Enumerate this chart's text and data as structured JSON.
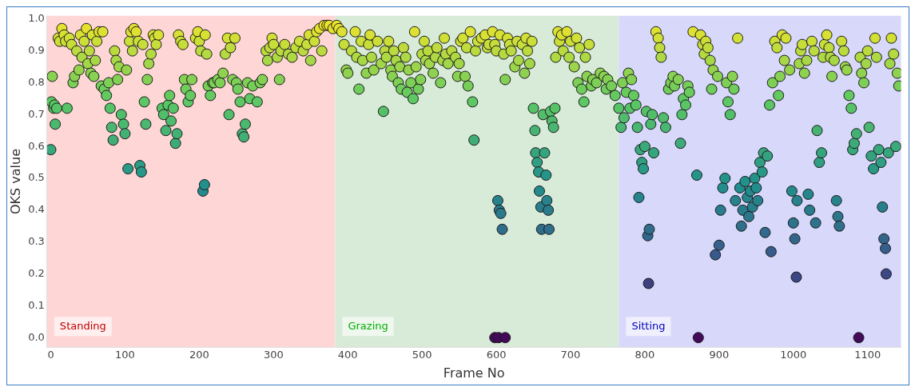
{
  "chart_data": {
    "type": "scatter",
    "xlabel": "Frame No",
    "ylabel": "OKS value",
    "xlim": [
      -5,
      1145
    ],
    "xticks": [
      0,
      100,
      200,
      300,
      400,
      500,
      600,
      700,
      800,
      900,
      1000,
      1100
    ],
    "ylim": [
      -0.03,
      1.01
    ],
    "yticks": [
      {
        "value": 0,
        "label": "0.0"
      },
      0.1,
      0.2,
      0.3,
      0.4,
      0.5,
      0.6,
      0.7,
      0.8,
      0.9,
      {
        "value": 1,
        "label": "1.0"
      }
    ],
    "grid": false,
    "legend": false,
    "marker": "circle",
    "bands": [
      {
        "axis": "x",
        "from": -5,
        "to": 383,
        "label": "Standing",
        "color": "#ffd6d6"
      },
      {
        "axis": "x",
        "from": 383,
        "to": 765,
        "label": "Grazing",
        "color": "#d8ead8"
      },
      {
        "axis": "x",
        "from": 765,
        "to": 1145,
        "label": "Sitting",
        "color": "#d8d8fa"
      }
    ],
    "series": [
      {
        "x": [
          0,
          2,
          1,
          4,
          5,
          6,
          8,
          10,
          12,
          15,
          18,
          20,
          22,
          25,
          28,
          30,
          32,
          35,
          38,
          40,
          42,
          45,
          48,
          50,
          52,
          54,
          56,
          58,
          60,
          62,
          65,
          68,
          70,
          72,
          75,
          78,
          80,
          82,
          84,
          86,
          88,
          90,
          92,
          95,
          98,
          100,
          102,
          104,
          106,
          108,
          110,
          112,
          115,
          118,
          120,
          122,
          124,
          126,
          128,
          130,
          132,
          135,
          138,
          140,
          142,
          145,
          150,
          152,
          155,
          158,
          160,
          162,
          165,
          168,
          170,
          172,
          175,
          178,
          180,
          182,
          185,
          188,
          190,
          195,
          198,
          200,
          202,
          205,
          207,
          208,
          210,
          212,
          215,
          218,
          220,
          225,
          228,
          232,
          235,
          238,
          240,
          242,
          245,
          248,
          250,
          252,
          255,
          258,
          260,
          262,
          265,
          268,
          272,
          278,
          282,
          285,
          290,
          292,
          295,
          298,
          300,
          305,
          308,
          310,
          315,
          320,
          325,
          330,
          335,
          340,
          345,
          348,
          350,
          355,
          358,
          362,
          365,
          368,
          372,
          375,
          380,
          385,
          388,
          392,
          395,
          398,
          400,
          405,
          410,
          412,
          415,
          418,
          420,
          425,
          428,
          430,
          432,
          435,
          440,
          445,
          448,
          450,
          452,
          455,
          458,
          460,
          462,
          465,
          468,
          470,
          472,
          475,
          478,
          480,
          482,
          485,
          488,
          490,
          492,
          495,
          498,
          500,
          503,
          505,
          508,
          510,
          515,
          518,
          520,
          525,
          528,
          530,
          532,
          535,
          540,
          545,
          548,
          550,
          552,
          555,
          558,
          560,
          562,
          565,
          568,
          570,
          572,
          575,
          580,
          585,
          588,
          590,
          595,
          598,
          600,
          602,
          604,
          606,
          608,
          598,
          603,
          612,
          605,
          610,
          612,
          615,
          618,
          620,
          625,
          628,
          630,
          635,
          638,
          640,
          642,
          645,
          648,
          650,
          652,
          653,
          655,
          657,
          658,
          660,
          661,
          663,
          665,
          667,
          668,
          670,
          671,
          673,
          675,
          677,
          679,
          680,
          683,
          685,
          688,
          690,
          695,
          698,
          700,
          705,
          708,
          710,
          712,
          715,
          718,
          720,
          722,
          725,
          728,
          730,
          735,
          740,
          745,
          748,
          750,
          755,
          760,
          765,
          768,
          770,
          772,
          775,
          778,
          780,
          782,
          785,
          788,
          790,
          792,
          794,
          796,
          798,
          800,
          802,
          804,
          805,
          806,
          808,
          810,
          812,
          815,
          818,
          820,
          822,
          825,
          828,
          832,
          835,
          838,
          840,
          845,
          848,
          850,
          852,
          855,
          858,
          860,
          865,
          870,
          872,
          875,
          878,
          880,
          882,
          885,
          888,
          890,
          892,
          895,
          898,
          900,
          902,
          905,
          908,
          910,
          912,
          915,
          918,
          920,
          922,
          925,
          928,
          930,
          932,
          935,
          938,
          940,
          942,
          945,
          948,
          950,
          952,
          955,
          958,
          960,
          962,
          965,
          968,
          970,
          972,
          975,
          978,
          980,
          982,
          985,
          988,
          990,
          995,
          998,
          1000,
          1002,
          1004,
          1005,
          1008,
          1010,
          1012,
          1015,
          1018,
          1020,
          1022,
          1025,
          1028,
          1030,
          1032,
          1035,
          1038,
          1040,
          1042,
          1045,
          1048,
          1050,
          1052,
          1055,
          1058,
          1060,
          1062,
          1065,
          1068,
          1070,
          1072,
          1075,
          1078,
          1080,
          1082,
          1085,
          1088,
          1090,
          1092,
          1095,
          1098,
          1100,
          1102,
          1105,
          1108,
          1110,
          1112,
          1115,
          1118,
          1120,
          1122,
          1124,
          1125,
          1128,
          1130,
          1132,
          1135,
          1138,
          1140,
          1142
        ],
        "values": [
          0.59,
          0.82,
          0.74,
          0.72,
          0.73,
          0.67,
          0.72,
          0.94,
          0.93,
          0.97,
          0.95,
          0.93,
          0.72,
          0.94,
          0.92,
          0.8,
          0.82,
          0.9,
          0.84,
          0.95,
          0.88,
          0.93,
          0.97,
          0.86,
          0.9,
          0.83,
          0.95,
          0.82,
          0.87,
          0.93,
          0.96,
          0.79,
          0.96,
          0.78,
          0.76,
          0.8,
          0.72,
          0.66,
          0.62,
          0.9,
          0.87,
          0.81,
          0.85,
          0.7,
          0.67,
          0.64,
          0.84,
          0.53,
          0.93,
          0.96,
          0.9,
          0.97,
          0.96,
          0.93,
          0.54,
          0.52,
          0.92,
          0.74,
          0.67,
          0.81,
          0.86,
          0.89,
          0.95,
          0.94,
          0.92,
          0.95,
          0.72,
          0.7,
          0.65,
          0.73,
          0.76,
          0.68,
          0.72,
          0.61,
          0.64,
          0.95,
          0.93,
          0.92,
          0.81,
          0.78,
          0.74,
          0.76,
          0.81,
          0.94,
          0.96,
          0.93,
          0.9,
          0.46,
          0.48,
          0.95,
          0.89,
          0.79,
          0.76,
          0.8,
          0.8,
          0.81,
          0.8,
          0.83,
          0.89,
          0.94,
          0.7,
          0.91,
          0.81,
          0.94,
          0.8,
          0.78,
          0.74,
          0.64,
          0.63,
          0.67,
          0.8,
          0.75,
          0.79,
          0.74,
          0.8,
          0.81,
          0.9,
          0.87,
          0.91,
          0.94,
          0.92,
          0.88,
          0.81,
          0.9,
          0.92,
          0.89,
          0.88,
          0.91,
          0.93,
          0.9,
          0.92,
          0.95,
          0.87,
          0.93,
          0.96,
          0.97,
          0.9,
          0.98,
          0.98,
          0.98,
          0.97,
          0.98,
          0.97,
          0.96,
          0.92,
          0.84,
          0.83,
          0.9,
          0.96,
          0.88,
          0.78,
          0.93,
          0.87,
          0.83,
          0.92,
          0.95,
          0.88,
          0.84,
          0.93,
          0.86,
          0.71,
          0.9,
          0.88,
          0.93,
          0.84,
          0.82,
          0.9,
          0.87,
          0.8,
          0.85,
          0.78,
          0.91,
          0.88,
          0.77,
          0.84,
          0.8,
          0.75,
          0.96,
          0.85,
          0.78,
          0.81,
          0.89,
          0.93,
          0.87,
          0.9,
          0.86,
          0.83,
          0.88,
          0.91,
          0.8,
          0.87,
          0.94,
          0.89,
          0.86,
          0.9,
          0.88,
          0.82,
          0.86,
          0.93,
          0.94,
          0.82,
          0.91,
          0.79,
          0.96,
          0.74,
          0.62,
          0.9,
          0.93,
          0.94,
          0.95,
          0.91,
          0.92,
          0.96,
          0.92,
          0.9,
          0.43,
          0.4,
          0.39,
          0.34,
          0,
          0,
          0,
          0.95,
          0.89,
          0.81,
          0.94,
          0.92,
          0.9,
          0.85,
          0.93,
          0.87,
          0.92,
          0.83,
          0.94,
          0.9,
          0.86,
          0.93,
          0.72,
          0.65,
          0.58,
          0.55,
          0.52,
          0.46,
          0.41,
          0.34,
          0.7,
          0.58,
          0.51,
          0.43,
          0.4,
          0.34,
          0.71,
          0.68,
          0.66,
          0.72,
          0.88,
          0.96,
          0.93,
          0.95,
          0.9,
          0.96,
          0.88,
          0.93,
          0.85,
          0.94,
          0.8,
          0.91,
          0.78,
          0.74,
          0.88,
          0.82,
          0.92,
          0.79,
          0.81,
          0.8,
          0.83,
          0.82,
          0.78,
          0.81,
          0.79,
          0.76,
          0.72,
          0.66,
          0.8,
          0.69,
          0.77,
          0.83,
          0.72,
          0.81,
          0.76,
          0.73,
          0.66,
          0.44,
          0.59,
          0.55,
          0.53,
          0.6,
          0.71,
          0.32,
          0.17,
          0.34,
          0.67,
          0.7,
          0.58,
          0.96,
          0.94,
          0.91,
          0.88,
          0.69,
          0.66,
          0.78,
          0.8,
          0.82,
          0.79,
          0.81,
          0.61,
          0.7,
          0.75,
          0.73,
          0.79,
          0.77,
          0.96,
          0.51,
          0,
          0.95,
          0.92,
          0.89,
          0.93,
          0.91,
          0.87,
          0.78,
          0.84,
          0.26,
          0.82,
          0.29,
          0.4,
          0.47,
          0.5,
          0.8,
          0.74,
          0.7,
          0.82,
          0.78,
          0.43,
          0.94,
          0.47,
          0.35,
          0.4,
          0.49,
          0.44,
          0.38,
          0.46,
          0.41,
          0.5,
          0.47,
          0.43,
          0.55,
          0.52,
          0.58,
          0.33,
          0.57,
          0.73,
          0.27,
          0.8,
          0.93,
          0.91,
          0.76,
          0.82,
          0.95,
          0.87,
          0.94,
          0.84,
          0.46,
          0.36,
          0.31,
          0.19,
          0.43,
          0.86,
          0.9,
          0.92,
          0.83,
          0.87,
          0.45,
          0.4,
          0.93,
          0.9,
          0.36,
          0.65,
          0.55,
          0.58,
          0.88,
          0.92,
          0.95,
          0.91,
          0.88,
          0.82,
          0.87,
          0.43,
          0.38,
          0.35,
          0.93,
          0.9,
          0.85,
          0.84,
          0.76,
          0.72,
          0.59,
          0.61,
          0.64,
          0,
          0.88,
          0.83,
          0.8,
          0.86,
          0.9,
          0.66,
          0.57,
          0.53,
          0.94,
          0.88,
          0.59,
          0.55,
          0.41,
          0.31,
          0.28,
          0.2,
          0.58,
          0.86,
          0.94,
          0.89,
          0.6,
          0.83,
          0.79
        ]
      }
    ]
  }
}
